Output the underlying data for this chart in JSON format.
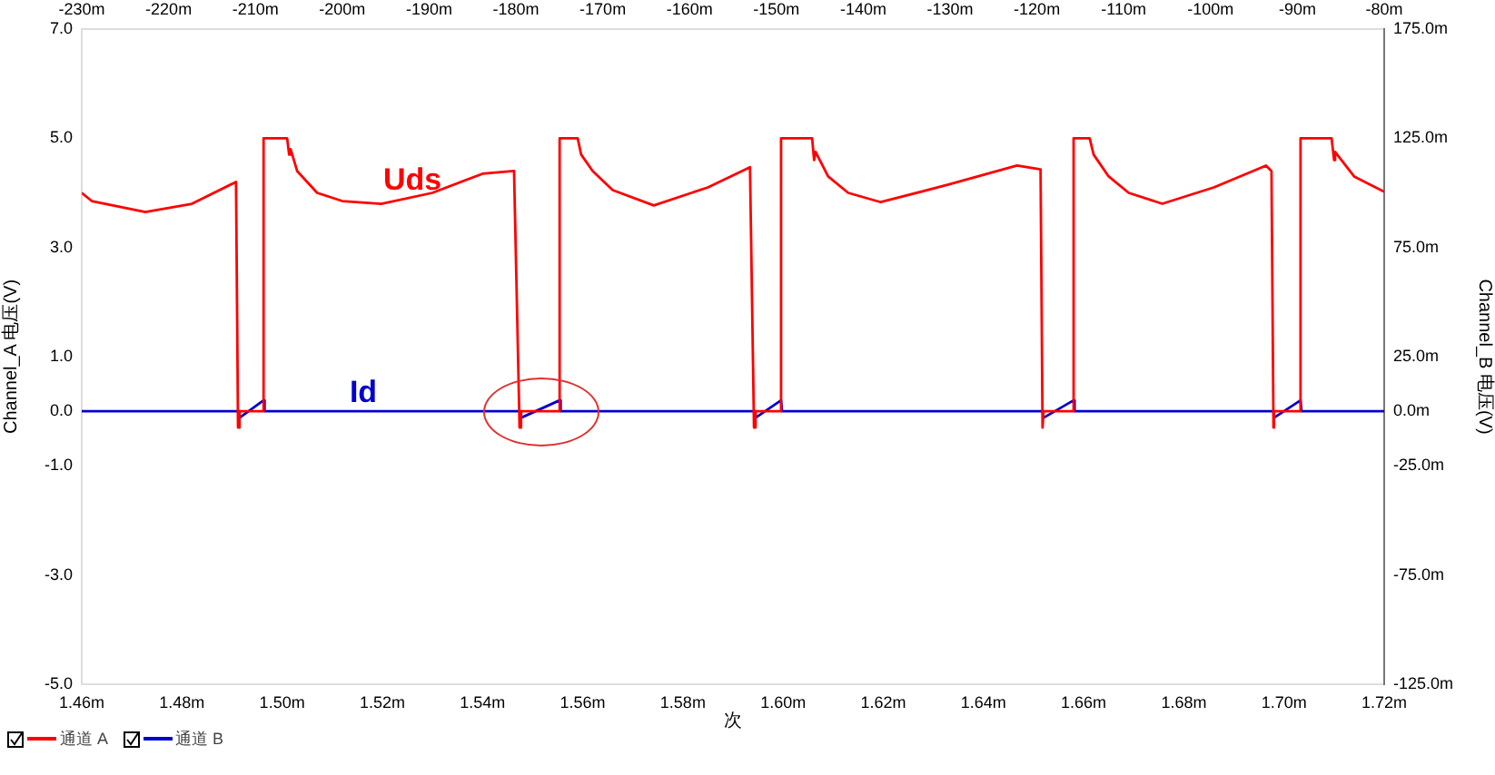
{
  "chart_data": {
    "type": "line",
    "xlabel": "次",
    "ylabel": "Channel_A 电压(V)",
    "y2label": "Channel_B 电压(V)",
    "xlim": [
      1.46,
      1.72
    ],
    "xticks": [
      {
        "value": 1.46,
        "label": "1.46m"
      },
      {
        "value": 1.48,
        "label": "1.48m"
      },
      {
        "value": 1.5,
        "label": "1.50m"
      },
      {
        "value": 1.52,
        "label": "1.52m"
      },
      {
        "value": 1.54,
        "label": "1.54m"
      },
      {
        "value": 1.56,
        "label": "1.56m"
      },
      {
        "value": 1.58,
        "label": "1.58m"
      },
      {
        "value": 1.6,
        "label": "1.60m"
      },
      {
        "value": 1.62,
        "label": "1.62m"
      },
      {
        "value": 1.64,
        "label": "1.64m"
      },
      {
        "value": 1.66,
        "label": "1.66m"
      },
      {
        "value": 1.68,
        "label": "1.68m"
      },
      {
        "value": 1.7,
        "label": "1.70m"
      },
      {
        "value": 1.72,
        "label": "1.72m"
      }
    ],
    "x2lim": [
      -230,
      -80
    ],
    "x2ticks": [
      {
        "value": -230,
        "label": "-230m"
      },
      {
        "value": -220,
        "label": "-220m"
      },
      {
        "value": -210,
        "label": "-210m"
      },
      {
        "value": -200,
        "label": "-200m"
      },
      {
        "value": -190,
        "label": "-190m"
      },
      {
        "value": -180,
        "label": "-180m"
      },
      {
        "value": -170,
        "label": "-170m"
      },
      {
        "value": -160,
        "label": "-160m"
      },
      {
        "value": -150,
        "label": "-150m"
      },
      {
        "value": -140,
        "label": "-140m"
      },
      {
        "value": -130,
        "label": "-130m"
      },
      {
        "value": -120,
        "label": "-120m"
      },
      {
        "value": -110,
        "label": "-110m"
      },
      {
        "value": -100,
        "label": "-100m"
      },
      {
        "value": -90,
        "label": "-90m"
      },
      {
        "value": -80,
        "label": "-80m"
      }
    ],
    "ylim": [
      -5,
      7
    ],
    "yticks": [
      {
        "value": 7,
        "label": "7.0"
      },
      {
        "value": 5,
        "label": "5.0"
      },
      {
        "value": 3,
        "label": "3.0"
      },
      {
        "value": 1,
        "label": "1.0"
      },
      {
        "value": 0,
        "label": "0.0"
      },
      {
        "value": -1,
        "label": "-1.0"
      },
      {
        "value": -3,
        "label": "-3.0"
      },
      {
        "value": -5,
        "label": "-5.0"
      }
    ],
    "y2lim": [
      -125,
      175
    ],
    "y2ticks": [
      {
        "value": 175,
        "label": "175.0m"
      },
      {
        "value": 125,
        "label": "125.0m"
      },
      {
        "value": 75,
        "label": "75.0m"
      },
      {
        "value": 25,
        "label": "25.0m"
      },
      {
        "value": 0,
        "label": "0.0m"
      },
      {
        "value": -25,
        "label": "-25.0m"
      },
      {
        "value": -75,
        "label": "-75.0m"
      },
      {
        "value": -125,
        "label": "-125.0m"
      }
    ],
    "legend": "bottom left",
    "marker": "none",
    "line_style": "solid",
    "annotations": [
      "Uds",
      "Id"
    ],
    "series": [
      {
        "name": "通道 A",
        "color": "#ff0000",
        "x": [
          1.46,
          1.462,
          1.4727,
          1.482,
          1.4908,
          1.4912,
          1.4915,
          1.4963,
          1.4963,
          1.501,
          1.5014,
          1.5017,
          1.503,
          1.507,
          1.512,
          1.5198,
          1.53,
          1.54,
          1.5463,
          1.5474,
          1.5477,
          1.5554,
          1.5554,
          1.559,
          1.5597,
          1.562,
          1.566,
          1.5742,
          1.585,
          1.5934,
          1.5942,
          1.5945,
          1.5996,
          1.5996,
          1.6058,
          1.6062,
          1.6065,
          1.609,
          1.613,
          1.6195,
          1.633,
          1.6467,
          1.6514,
          1.6518,
          1.652,
          1.658,
          1.658,
          1.6612,
          1.662,
          1.665,
          1.669,
          1.6757,
          1.686,
          1.6964,
          1.6975,
          1.6979,
          1.698,
          1.7033,
          1.7033,
          1.7095,
          1.71,
          1.7102,
          1.714,
          1.72
        ],
        "values": [
          4.0,
          3.85,
          3.65,
          3.8,
          4.2,
          -0.3,
          0,
          0,
          5,
          5,
          4.7,
          4.8,
          4.4,
          4.0,
          3.85,
          3.8,
          4.0,
          4.35,
          4.4,
          -0.3,
          0,
          0,
          5,
          5,
          4.7,
          4.4,
          4.05,
          3.77,
          4.1,
          4.47,
          -0.3,
          0,
          0,
          5,
          5,
          4.6,
          4.75,
          4.3,
          4.0,
          3.83,
          4.15,
          4.5,
          4.43,
          -0.3,
          0,
          0,
          5,
          5,
          4.7,
          4.3,
          4.0,
          3.8,
          4.1,
          4.5,
          4.4,
          -0.3,
          0,
          0,
          5,
          5,
          4.6,
          4.75,
          4.3,
          4.02
        ]
      },
      {
        "name": "通道 B",
        "color": "#0000cc",
        "axis": "y2",
        "x": [
          1.46,
          1.4912,
          1.4915,
          1.4963,
          1.4965,
          1.5474,
          1.5477,
          1.5554,
          1.5556,
          1.5942,
          1.5945,
          1.5996,
          1.5998,
          1.6518,
          1.652,
          1.658,
          1.6582,
          1.6979,
          1.698,
          1.7033,
          1.7035,
          1.72
        ],
        "values": [
          0,
          0,
          -3,
          5,
          0,
          0,
          -3,
          5,
          0,
          0,
          -3,
          5,
          0,
          0,
          -3,
          5,
          0,
          0,
          -3,
          5,
          0,
          0
        ]
      }
    ]
  }
}
